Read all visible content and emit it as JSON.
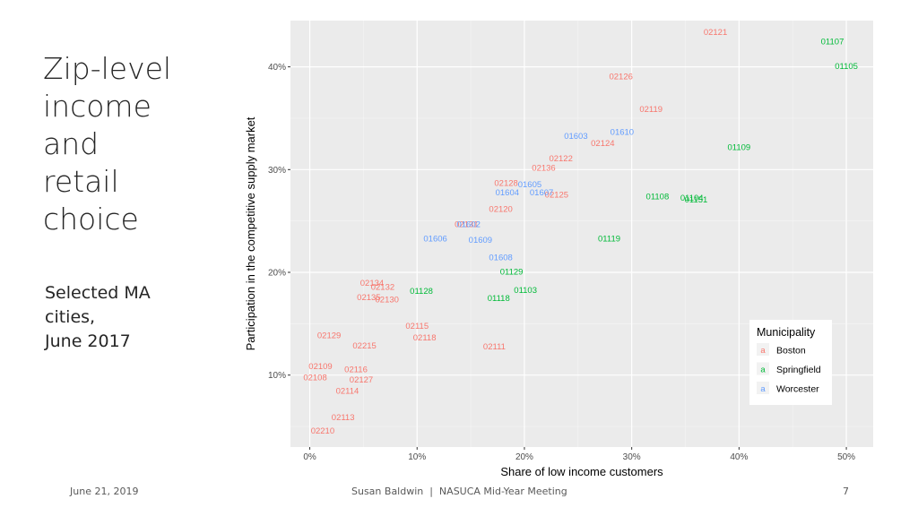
{
  "slide": {
    "title_lines": [
      "Zip-level",
      "income",
      "and",
      "retail",
      "choice"
    ],
    "subtitle_lines": [
      "Selected MA",
      "cities,",
      "June 2017"
    ],
    "footer_date": "June 21, 2019",
    "footer_center": "Susan Baldwin  |  NASUCA Mid-Year Meeting",
    "page_number": "7"
  },
  "chart_data": {
    "type": "scatter",
    "xlabel": "Share of low income customers",
    "ylabel": "Participation in the competitive supply market",
    "x_ticks": [
      "0%",
      "10%",
      "20%",
      "30%",
      "40%",
      "50%"
    ],
    "y_ticks": [
      "10%",
      "20%",
      "30%",
      "40%"
    ],
    "xlim": [
      -1.8,
      52.5
    ],
    "ylim": [
      3.0,
      44.5
    ],
    "grid": true,
    "legend_title": "Municipality",
    "legend_position": "bottom-right",
    "legend_marker": "a",
    "colors": {
      "Boston": "#F8766D",
      "Springfield": "#00BA38",
      "Worcester": "#619CFF"
    },
    "series": [
      {
        "name": "Boston",
        "points": [
          {
            "label": "02121",
            "x": 37.8,
            "y": 43.4
          },
          {
            "label": "02126",
            "x": 29.0,
            "y": 39.1
          },
          {
            "label": "02119",
            "x": 31.8,
            "y": 35.9
          },
          {
            "label": "02124",
            "x": 27.3,
            "y": 32.6
          },
          {
            "label": "02122",
            "x": 23.4,
            "y": 31.1
          },
          {
            "label": "02136",
            "x": 21.8,
            "y": 30.2
          },
          {
            "label": "02128",
            "x": 18.3,
            "y": 28.7
          },
          {
            "label": "02125",
            "x": 23.0,
            "y": 27.6
          },
          {
            "label": "02120",
            "x": 17.8,
            "y": 26.2
          },
          {
            "label": "02131",
            "x": 14.6,
            "y": 24.7
          },
          {
            "label": "02134",
            "x": 5.8,
            "y": 19.0
          },
          {
            "label": "02132",
            "x": 6.8,
            "y": 18.6
          },
          {
            "label": "02135",
            "x": 5.5,
            "y": 17.6
          },
          {
            "label": "02130",
            "x": 7.2,
            "y": 17.4
          },
          {
            "label": "02115",
            "x": 10.0,
            "y": 14.8
          },
          {
            "label": "02118",
            "x": 10.7,
            "y": 13.7
          },
          {
            "label": "02129",
            "x": 1.8,
            "y": 13.9
          },
          {
            "label": "02215",
            "x": 5.1,
            "y": 12.9
          },
          {
            "label": "02111",
            "x": 17.2,
            "y": 12.8
          },
          {
            "label": "02109",
            "x": 1.0,
            "y": 10.9
          },
          {
            "label": "02116",
            "x": 4.3,
            "y": 10.6
          },
          {
            "label": "02108",
            "x": 0.5,
            "y": 9.8
          },
          {
            "label": "02127",
            "x": 4.8,
            "y": 9.6
          },
          {
            "label": "02114",
            "x": 3.5,
            "y": 8.5
          },
          {
            "label": "02113",
            "x": 3.1,
            "y": 5.9
          },
          {
            "label": "02210",
            "x": 1.2,
            "y": 4.6
          }
        ]
      },
      {
        "name": "Springfield",
        "points": [
          {
            "label": "01107",
            "x": 48.7,
            "y": 42.5
          },
          {
            "label": "01105",
            "x": 50.0,
            "y": 40.1
          },
          {
            "label": "01109",
            "x": 40.0,
            "y": 32.2
          },
          {
            "label": "01108",
            "x": 32.4,
            "y": 27.4
          },
          {
            "label": "01104",
            "x": 35.6,
            "y": 27.3
          },
          {
            "label": "01151",
            "x": 36.0,
            "y": 27.1
          },
          {
            "label": "01119",
            "x": 27.9,
            "y": 23.3
          },
          {
            "label": "01129",
            "x": 18.8,
            "y": 20.1
          },
          {
            "label": "01103",
            "x": 20.1,
            "y": 18.3
          },
          {
            "label": "01128",
            "x": 10.4,
            "y": 18.2
          },
          {
            "label": "01118",
            "x": 17.6,
            "y": 17.5
          }
        ]
      },
      {
        "name": "Worcester",
        "points": [
          {
            "label": "01610",
            "x": 29.1,
            "y": 33.7
          },
          {
            "label": "01603",
            "x": 24.8,
            "y": 33.3
          },
          {
            "label": "01605",
            "x": 20.5,
            "y": 28.6
          },
          {
            "label": "01604",
            "x": 18.4,
            "y": 27.8
          },
          {
            "label": "01607",
            "x": 21.6,
            "y": 27.8
          },
          {
            "label": "01602",
            "x": 14.8,
            "y": 24.7
          },
          {
            "label": "01606",
            "x": 11.7,
            "y": 23.3
          },
          {
            "label": "01609",
            "x": 15.9,
            "y": 23.2
          },
          {
            "label": "01608",
            "x": 17.8,
            "y": 21.5
          }
        ]
      }
    ]
  }
}
